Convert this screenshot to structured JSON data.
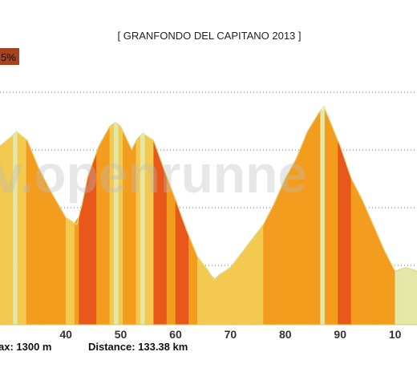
{
  "chart_data": {
    "type": "area",
    "title": "[ GRANFONDO DEL CAPITANO 2013 ]",
    "x_ticks": [
      "40",
      "50",
      "60",
      "70",
      "80",
      "90",
      "10"
    ],
    "xlim": [
      28,
      104
    ],
    "ylim": [
      0,
      1300
    ],
    "x": [
      28,
      30,
      31,
      33,
      35,
      37,
      40,
      42,
      43,
      44,
      46,
      48,
      49,
      50,
      52,
      53,
      54,
      56,
      58,
      60,
      62,
      64,
      66,
      67,
      68,
      70,
      72,
      74,
      76,
      78,
      80,
      82,
      84,
      86,
      87,
      88,
      90,
      92,
      94,
      96,
      98,
      100,
      102,
      104
    ],
    "y": [
      1000,
      1050,
      1080,
      1030,
      880,
      760,
      600,
      560,
      680,
      830,
      1000,
      1110,
      1130,
      1110,
      980,
      1040,
      1070,
      1030,
      860,
      700,
      530,
      380,
      300,
      250,
      280,
      320,
      400,
      480,
      560,
      680,
      820,
      930,
      1080,
      1180,
      1220,
      1150,
      1000,
      820,
      700,
      560,
      420,
      300,
      320,
      300
    ],
    "gradient_colors": [
      "#e3e8a8",
      "#f4c950",
      "#f39c1e",
      "#e8581b"
    ],
    "footer": {
      "max_text": "ax: 1300 m",
      "distance_text": "Distance: 133.38 km"
    },
    "badge_text": "5%",
    "badge_color": "#a7421e",
    "watermark": "v.openrunne"
  }
}
